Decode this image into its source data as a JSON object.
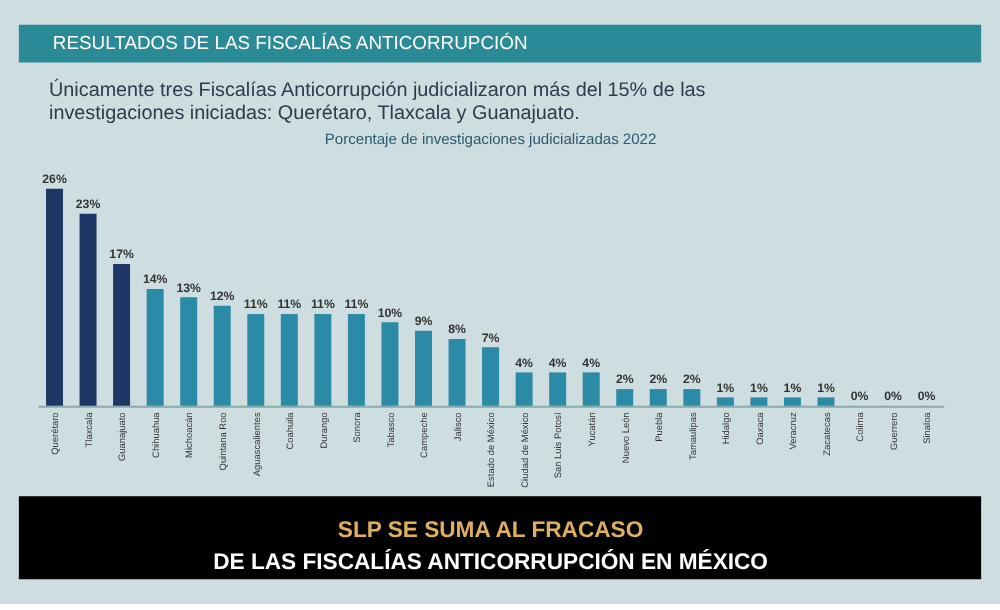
{
  "chart_data": {
    "type": "bar",
    "title": "Porcentaje de investigaciones judicializadas 2022",
    "subtitle": "Únicamente tres Fiscalías Anticorrupción judicializaron más del 15% de las investigaciones iniciadas: Querétaro, Tlaxcala y Guanajuato.",
    "annotations": [
      "RESULTADOS DE LAS FISCALÍAS ANTICORRUPCIÓN",
      "SLP SE SUMA AL FRACASO",
      "DE LAS FISCALÍAS ANTICORRUPCIÓN EN MÉXICO"
    ],
    "categories": [
      "Querétaro",
      "Tlaxcala",
      "Guanajuato",
      "Chihuahua",
      "Michoacán",
      "Quintana Roo",
      "Aguascalientes",
      "Coahuila",
      "Durango",
      "Sonora",
      "Tabasco",
      "Campeche",
      "Jalisco",
      "Estado de México",
      "Ciudad de México",
      "San Luis Potosí",
      "Yucatán",
      "Nuevo León",
      "Puebla",
      "Tamaulipas",
      "Hidalgo",
      "Oaxaca",
      "Veracruz",
      "Zacatecas",
      "Colima",
      "Guerrero",
      "Sinaloa"
    ],
    "values": [
      26,
      23,
      17,
      14,
      13,
      12,
      11,
      11,
      11,
      11,
      10,
      9,
      8,
      7,
      4,
      4,
      4,
      2,
      2,
      2,
      1,
      1,
      1,
      1,
      0,
      0,
      0
    ],
    "colors": [
      "#1f3766",
      "#1f3766",
      "#1f3766",
      "#2b8aa6",
      "#2b8aa6",
      "#2b8aa6",
      "#2b8aa6",
      "#2b8aa6",
      "#2b8aa6",
      "#2b8aa6",
      "#2b8aa6",
      "#2b8aa6",
      "#2b8aa6",
      "#2b8aa6",
      "#2b8aa6",
      "#2b8aa6",
      "#2b8aa6",
      "#2b8aa6",
      "#2b8aa6",
      "#2b8aa6",
      "#2b8aa6",
      "#2b8aa6",
      "#2b8aa6",
      "#2b8aa6",
      "#2b8aa6",
      "#2b8aa6",
      "#2b8aa6"
    ],
    "value_labels": [
      "26%",
      "23%",
      "17%",
      "14%",
      "13%",
      "12%",
      "11%",
      "11%",
      "11%",
      "11%",
      "10%",
      "9%",
      "8%",
      "7%",
      "4%",
      "4%",
      "4%",
      "2%",
      "2%",
      "2%",
      "1%",
      "1%",
      "1%",
      "1%",
      "0%",
      "0%",
      "0%"
    ]
  }
}
